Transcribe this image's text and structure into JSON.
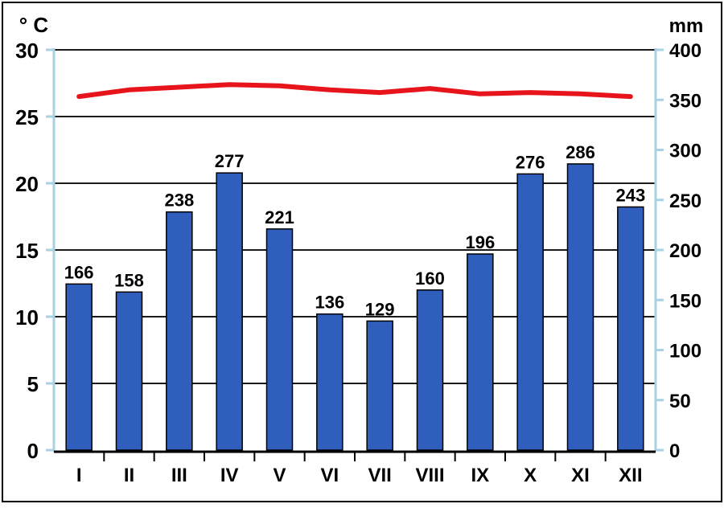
{
  "chart_data": {
    "type": "bar",
    "left_axis_unit": "° C",
    "right_axis_unit": "mm",
    "categories": [
      "I",
      "II",
      "III",
      "IV",
      "V",
      "VI",
      "VII",
      "VIII",
      "IX",
      "X",
      "XI",
      "XII"
    ],
    "precipitation": {
      "values": [
        166,
        158,
        238,
        277,
        221,
        136,
        129,
        160,
        196,
        276,
        286,
        243
      ],
      "color": "#2f5ebc",
      "axis": "right",
      "ylim": [
        0,
        400
      ],
      "ticks": [
        0,
        50,
        100,
        150,
        200,
        250,
        300,
        350,
        400
      ]
    },
    "temperature": {
      "values": [
        26.5,
        27.0,
        27.2,
        27.4,
        27.3,
        27.0,
        26.8,
        27.1,
        26.7,
        26.8,
        26.7,
        26.5
      ],
      "color": "#e8141c",
      "axis": "left",
      "ylim": [
        0,
        30
      ],
      "ticks": [
        0,
        5,
        10,
        15,
        20,
        25,
        30
      ]
    },
    "grid": true,
    "frame_color": "#000000",
    "axis_color": "#a9d1e4"
  }
}
